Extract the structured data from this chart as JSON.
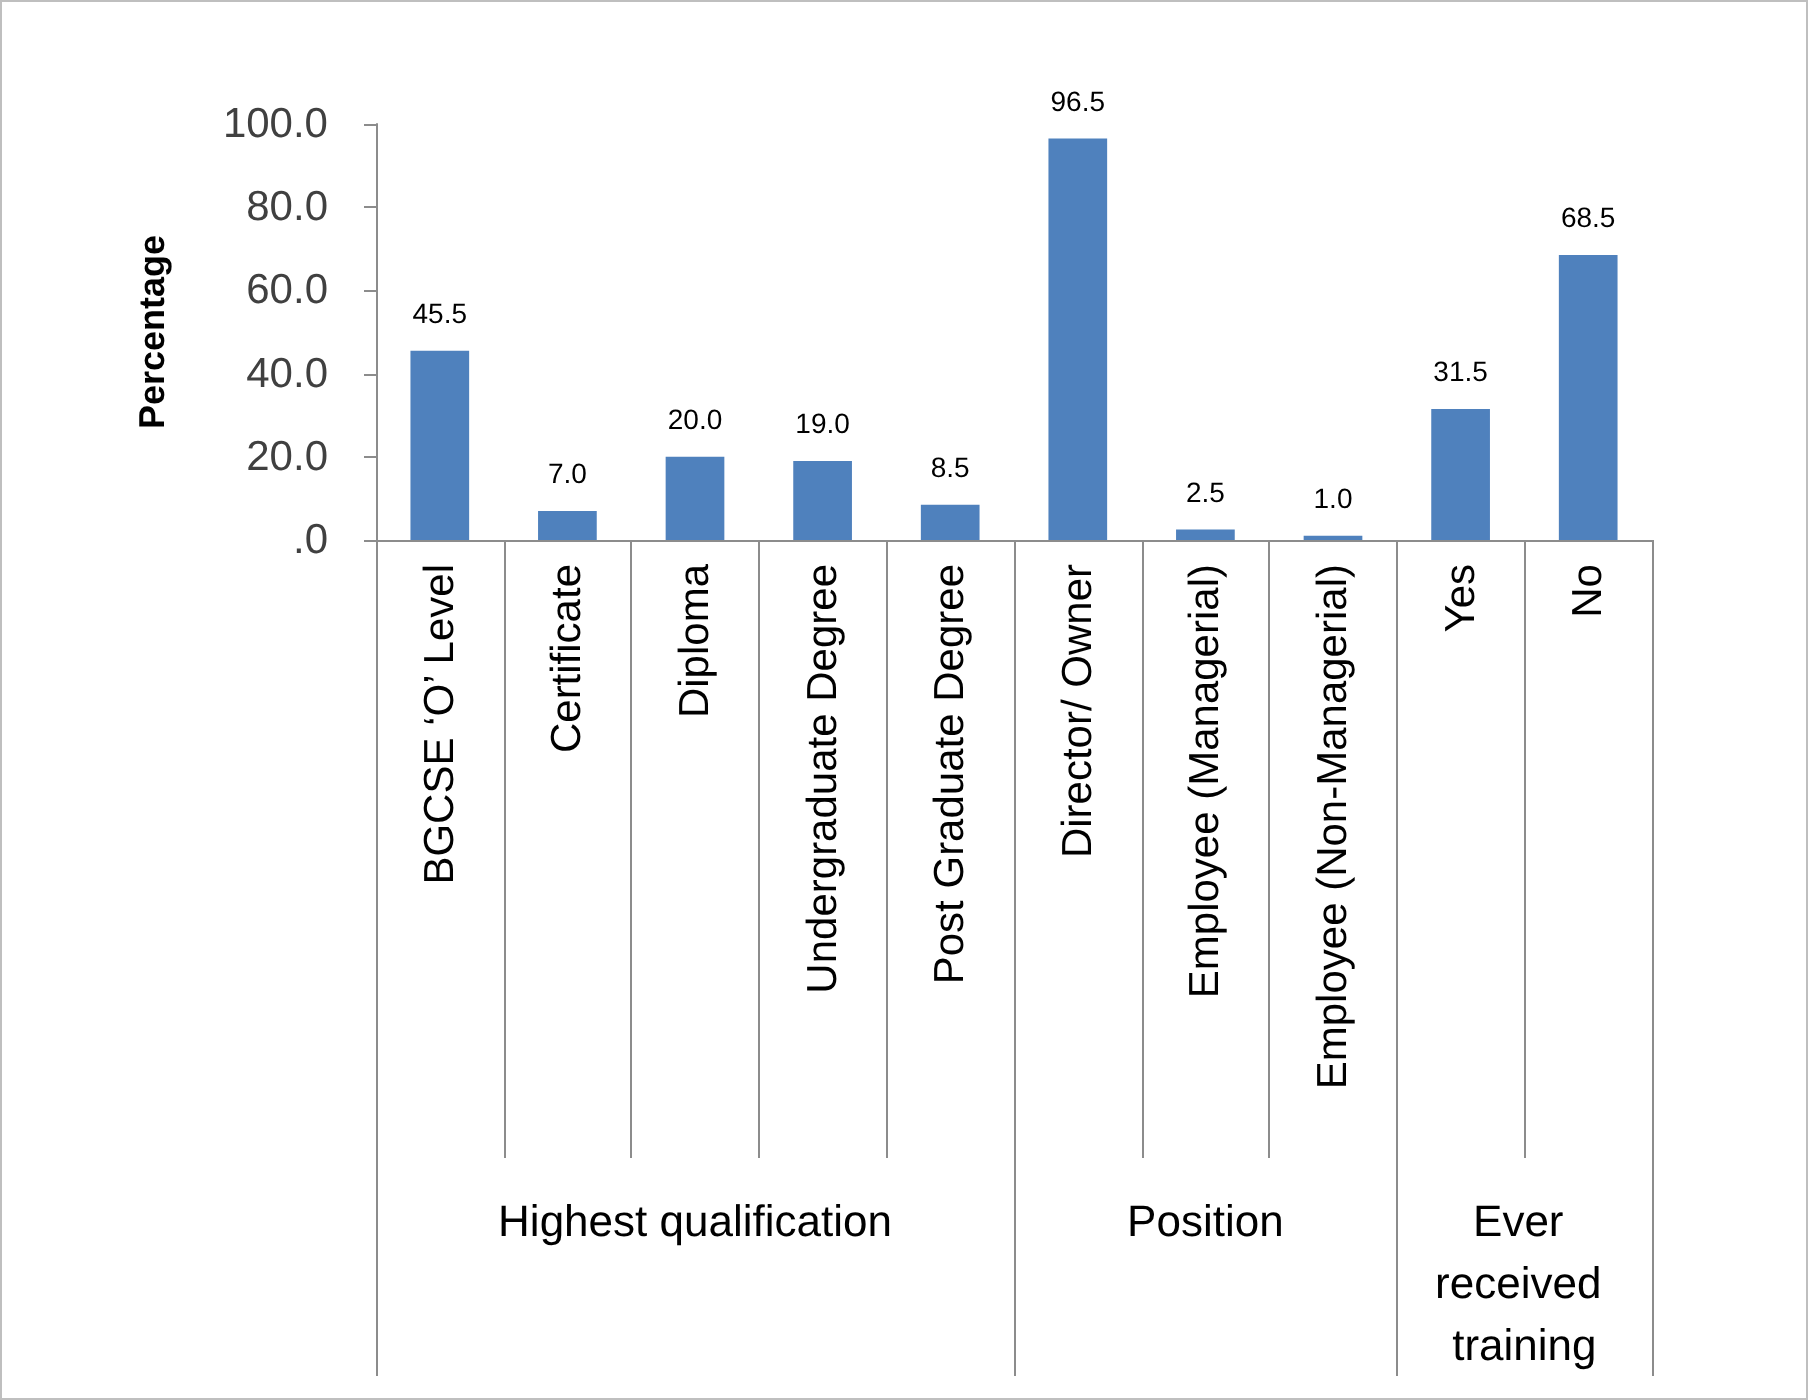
{
  "chart_data": {
    "type": "bar",
    "ylabel": "Percentage",
    "categories": [
      "BGCSE ‘O’ Level",
      "Certificate",
      "Diploma",
      "Undergraduate Degree",
      "Post Graduate Degree",
      "Director/ Owner",
      "Employee (Managerial)",
      "Employee (Non-Managerial)",
      "Yes",
      "No"
    ],
    "values": [
      45.5,
      7.0,
      20.0,
      19.0,
      8.5,
      96.5,
      2.5,
      1.0,
      31.5,
      68.5
    ],
    "value_labels": [
      "45.5",
      "7.0",
      "20.0",
      "19.0",
      "8.5",
      "96.5",
      "2.5",
      "1.0",
      "31.5",
      "68.5"
    ],
    "color": "#4f81bd",
    "ylim": [
      0,
      100
    ],
    "yticks": [
      {
        "value": 0,
        "label": ".0"
      },
      {
        "value": 20,
        "label": "20.0"
      },
      {
        "value": 40,
        "label": "40.0"
      },
      {
        "value": 60,
        "label": "60.0"
      },
      {
        "value": 80,
        "label": "80.0"
      },
      {
        "value": 100,
        "label": "100.0"
      }
    ],
    "annotations": [
      "Highest qualification",
      "Position",
      "Ever received training"
    ]
  }
}
